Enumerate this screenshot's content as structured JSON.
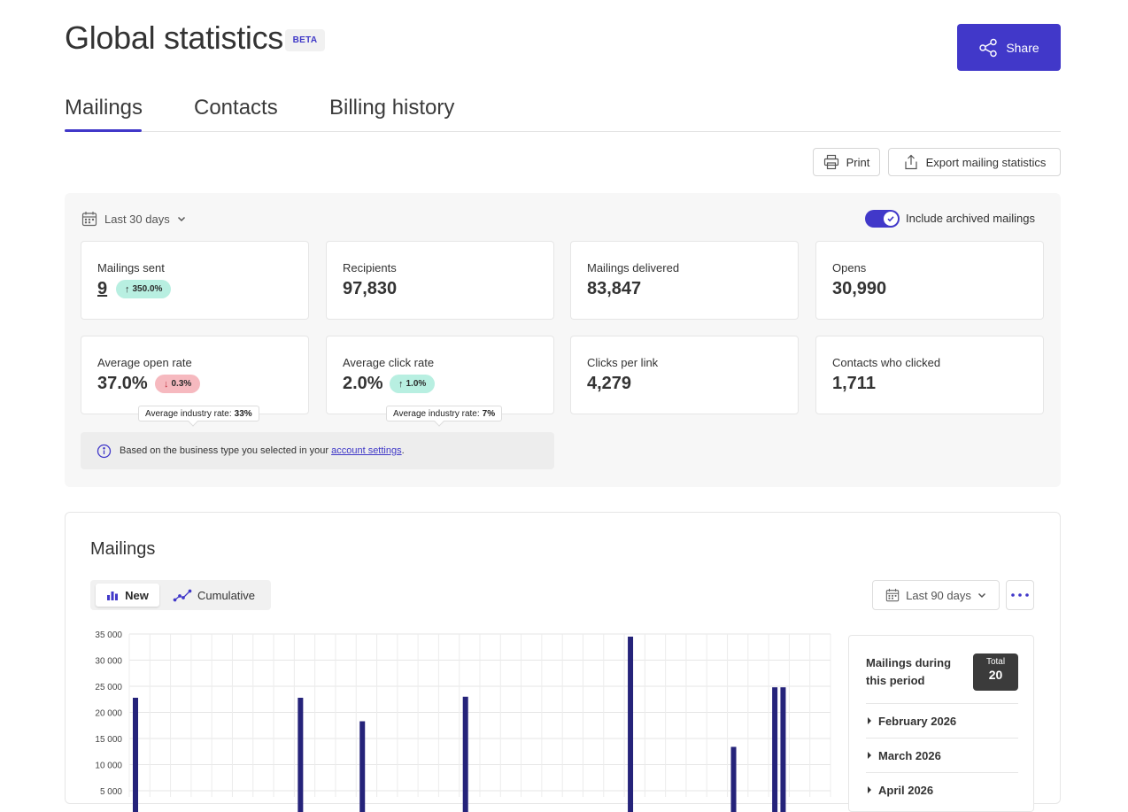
{
  "header": {
    "title": "Global statistics",
    "badge": "BETA",
    "share_label": "Share"
  },
  "tabs": [
    {
      "label": "Mailings",
      "active": true
    },
    {
      "label": "Contacts",
      "active": false
    },
    {
      "label": "Billing history",
      "active": false
    }
  ],
  "actions": {
    "print_label": "Print",
    "export_label": "Export mailing statistics"
  },
  "filters": {
    "period": "Last 30 days",
    "archived_label": "Include archived mailings",
    "archived_enabled": true
  },
  "cards": [
    {
      "label": "Mailings sent",
      "value": "9",
      "change": "350.0%",
      "direction": "up"
    },
    {
      "label": "Recipients",
      "value": "97,830"
    },
    {
      "label": "Mailings delivered",
      "value": "83,847"
    },
    {
      "label": "Opens",
      "value": "30,990"
    },
    {
      "label": "Average open rate",
      "value": "37.0%",
      "change": "0.3%",
      "direction": "down",
      "industry_label": "Average industry rate:",
      "industry_value": "33%"
    },
    {
      "label": "Average click rate",
      "value": "2.0%",
      "change": "1.0%",
      "direction": "up",
      "industry_label": "Average industry rate:",
      "industry_value": "7%"
    },
    {
      "label": "Clicks per link",
      "value": "4,279"
    },
    {
      "label": "Contacts who clicked",
      "value": "1,711"
    }
  ],
  "info": {
    "text": "Based on the business type you selected in your",
    "link": "account settings",
    "suffix": "."
  },
  "mailings_chart": {
    "title": "Mailings",
    "view_new": "New",
    "view_cumulative": "Cumulative",
    "range": "Last 90 days",
    "summary_title": "Mailings during this period",
    "total_label": "Total",
    "total_value": "20",
    "months": [
      "February 2026",
      "March 2026",
      "April 2026"
    ]
  },
  "chart_data": {
    "type": "bar",
    "y_ticks": [
      "35 000",
      "30 000",
      "25 000",
      "20 000",
      "15 000",
      "10 000",
      "5 000"
    ],
    "ylim": [
      0,
      35000
    ],
    "bar_color": "#25237a",
    "bars": [
      {
        "slot": 0,
        "value": 22800
      },
      {
        "slot": 8,
        "value": 22800
      },
      {
        "slot": 11,
        "value": 18300
      },
      {
        "slot": 16,
        "value": 23000
      },
      {
        "slot": 24,
        "value": 34500
      },
      {
        "slot": 29,
        "value": 13400
      },
      {
        "slot": 31,
        "value": 24800
      },
      {
        "slot": 31.4,
        "value": 24800
      }
    ]
  },
  "colors": {
    "accent": "#4138c9",
    "up_chip": "#b8efe1",
    "down_chip": "#f6b9bf",
    "bar": "#25237a"
  }
}
